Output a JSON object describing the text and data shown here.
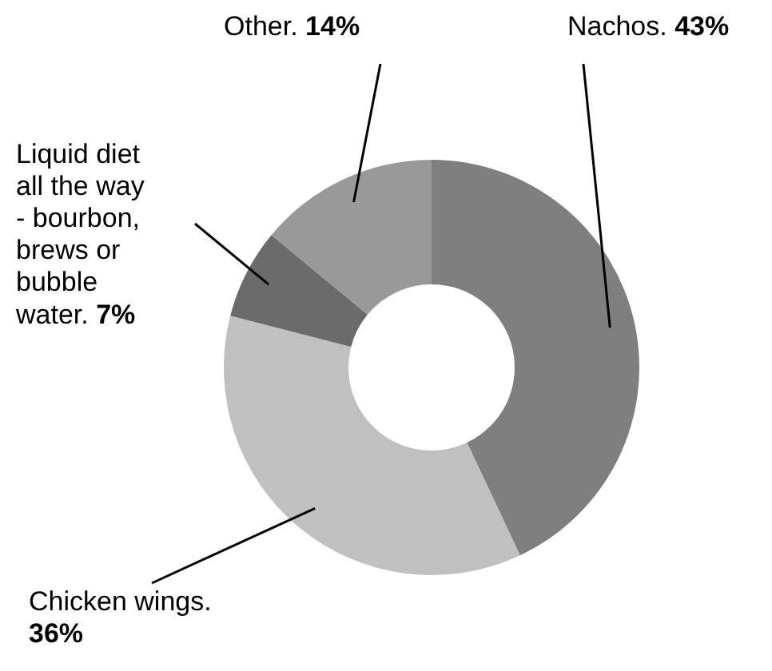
{
  "chart_data": {
    "type": "donut",
    "categories": [
      "Nachos.",
      "Chicken wings.",
      "Liquid diet all the way - bourbon, brews or bubble water.",
      "Other."
    ],
    "values": [
      43,
      36,
      7,
      14
    ],
    "value_labels": [
      "43%",
      "36%",
      "7%",
      "14%"
    ],
    "colors": [
      "#7f7f7f",
      "#c0c0c0",
      "#6b6b6b",
      "#999999"
    ],
    "legend": false
  }
}
